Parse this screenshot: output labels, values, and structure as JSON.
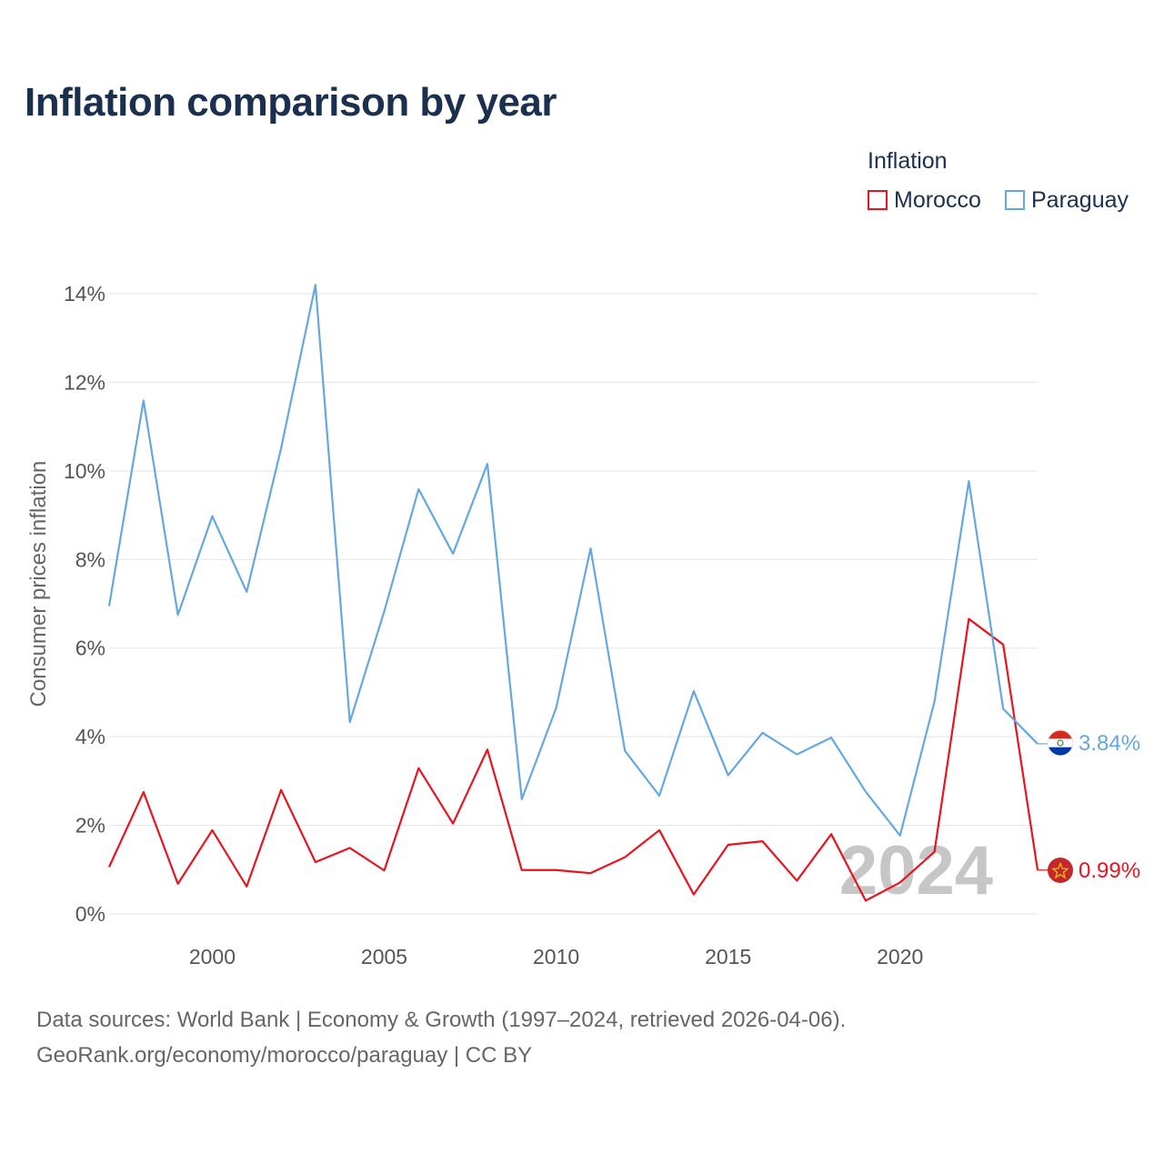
{
  "chart_data": {
    "type": "line",
    "title": "Inflation comparison by year",
    "ylabel": "Consumer prices inflation",
    "xlabel": "",
    "x": [
      1997,
      1998,
      1999,
      2000,
      2001,
      2002,
      2003,
      2004,
      2005,
      2006,
      2007,
      2008,
      2009,
      2010,
      2011,
      2012,
      2013,
      2014,
      2015,
      2016,
      2017,
      2018,
      2019,
      2020,
      2021,
      2022,
      2023,
      2024
    ],
    "xlim": [
      1997,
      2024
    ],
    "ylim": [
      0,
      14
    ],
    "x_ticks": [
      2000,
      2005,
      2010,
      2015,
      2020
    ],
    "y_ticks": [
      0,
      2,
      4,
      6,
      8,
      10,
      12,
      14
    ],
    "y_tick_labels": [
      "0%",
      "2%",
      "4%",
      "6%",
      "8%",
      "10%",
      "12%",
      "14%"
    ],
    "legend_title": "Inflation",
    "legend_position": "top-right",
    "grid": true,
    "year_watermark": "2024",
    "series": [
      {
        "name": "Morocco",
        "color": "#e8141e",
        "end_label": "0.99%",
        "flag_icon": "morocco-flag-icon",
        "values": [
          1.06,
          2.75,
          0.68,
          1.89,
          0.62,
          2.8,
          1.17,
          1.49,
          0.98,
          3.29,
          2.04,
          3.71,
          0.99,
          0.99,
          0.92,
          1.28,
          1.89,
          0.44,
          1.56,
          1.64,
          0.75,
          1.8,
          0.3,
          0.71,
          1.4,
          6.66,
          6.08,
          0.99
        ]
      },
      {
        "name": "Paraguay",
        "color": "#65a8e0",
        "end_label": "3.84%",
        "flag_icon": "paraguay-flag-icon",
        "values": [
          6.95,
          11.59,
          6.75,
          8.98,
          7.27,
          10.51,
          14.2,
          4.33,
          6.83,
          9.59,
          8.13,
          10.16,
          2.59,
          4.65,
          8.25,
          3.68,
          2.67,
          5.03,
          3.13,
          4.09,
          3.6,
          3.98,
          2.76,
          1.77,
          4.79,
          9.77,
          4.63,
          3.84
        ]
      }
    ]
  },
  "sources": {
    "line1": "Data sources: World Bank | Economy & Growth (1997–2024, retrieved 2026-04-06).",
    "line2": "GeoRank.org/economy/morocco/paraguay | CC BY"
  }
}
